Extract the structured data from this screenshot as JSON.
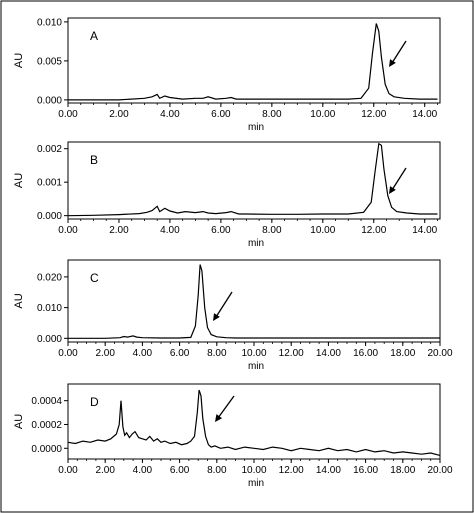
{
  "chart_data": [
    {
      "type": "line",
      "panel_label": "A",
      "ylabel": "AU",
      "xlabel": "min",
      "xlim": [
        0,
        14.6
      ],
      "ylim": [
        -0.0004,
        0.0105
      ],
      "x_ticks": [
        "0.00",
        "2.00",
        "4.00",
        "6.00",
        "8.00",
        "10.00",
        "12.00",
        "14.00"
      ],
      "y_ticks": [
        "0.000",
        "0.005",
        "0.010"
      ],
      "annotation": "arrow",
      "series": [
        {
          "x": [
            0,
            1,
            2,
            3.0,
            3.3,
            3.5,
            3.6,
            3.8,
            4.0,
            4.5,
            5.0,
            5.3,
            5.5,
            5.8,
            6.2,
            6.4,
            6.6,
            7,
            8,
            9,
            10,
            11,
            11.5,
            11.8,
            11.95,
            12.1,
            12.2,
            12.3,
            12.45,
            12.6,
            12.8,
            13.2,
            13.8,
            14.5
          ],
          "y": [
            0,
            0,
            0,
            0.0002,
            0.0004,
            0.0007,
            0.0002,
            0.0005,
            0.0003,
            0.0001,
            0.0002,
            0.0002,
            0.0004,
            0.0001,
            0.0002,
            0.0003,
            0.0001,
            0.0001,
            0.0001,
            0.0001,
            0.0001,
            0.0001,
            0.0002,
            0.0015,
            0.006,
            0.0098,
            0.0088,
            0.0055,
            0.002,
            0.0008,
            0.0004,
            0.0002,
            0.0001,
            0.0001
          ]
        }
      ]
    },
    {
      "type": "line",
      "panel_label": "B",
      "ylabel": "AU",
      "xlabel": "min",
      "xlim": [
        0,
        14.6
      ],
      "ylim": [
        -0.0001,
        0.0022
      ],
      "x_ticks": [
        "0.00",
        "2.00",
        "4.00",
        "6.00",
        "8.00",
        "10.00",
        "12.00",
        "14.00"
      ],
      "y_ticks": [
        "0.000",
        "0.001",
        "0.002"
      ],
      "annotation": "arrow",
      "series": [
        {
          "x": [
            0,
            1,
            2,
            2.8,
            3.1,
            3.3,
            3.5,
            3.6,
            3.8,
            4.0,
            4.3,
            4.6,
            5.0,
            5.3,
            5.5,
            5.8,
            6.2,
            6.4,
            6.7,
            7,
            8,
            9,
            10,
            11,
            11.6,
            11.9,
            12.05,
            12.2,
            12.3,
            12.4,
            12.55,
            12.7,
            12.9,
            13.3,
            13.8,
            14.5
          ],
          "y": [
            0,
            1e-05,
            3e-05,
            6e-05,
            0.0001,
            0.00015,
            0.00028,
            0.00012,
            0.00022,
            0.00014,
            8e-05,
            0.00012,
            9e-05,
            0.00012,
            8e-05,
            6e-05,
            9e-05,
            0.00012,
            5e-05,
            5e-05,
            4e-05,
            4e-05,
            5e-05,
            5e-05,
            0.0001,
            0.0004,
            0.0013,
            0.00215,
            0.0021,
            0.0014,
            0.0006,
            0.00025,
            0.00012,
            8e-05,
            5e-05,
            5e-05
          ]
        }
      ]
    },
    {
      "type": "line",
      "panel_label": "C",
      "ylabel": "AU",
      "xlabel": "min",
      "xlim": [
        0,
        20
      ],
      "ylim": [
        -0.0012,
        0.0255
      ],
      "x_ticks": [
        "0.00",
        "2.00",
        "4.00",
        "6.00",
        "8.00",
        "10.00",
        "12.00",
        "14.00",
        "16.00",
        "18.00",
        "20.00"
      ],
      "y_ticks": [
        "0.000",
        "0.010",
        "0.020"
      ],
      "annotation": "arrow",
      "series": [
        {
          "x": [
            0,
            1,
            2,
            2.8,
            3.0,
            3.2,
            3.5,
            3.7,
            4.0,
            5,
            6,
            6.6,
            6.85,
            7.0,
            7.1,
            7.2,
            7.35,
            7.5,
            7.7,
            8.0,
            8.5,
            9,
            10,
            12,
            14,
            16,
            18,
            20
          ],
          "y": [
            0,
            0,
            0,
            0.0002,
            0.0006,
            0.0004,
            0.0008,
            0.0004,
            0.0002,
            0.0001,
            0.0001,
            0.0003,
            0.004,
            0.014,
            0.024,
            0.022,
            0.01,
            0.0035,
            0.0012,
            0.0005,
            0.0002,
            0.0001,
            0.0001,
            0.0001,
            0.0001,
            0.0001,
            0.0001,
            0.0001
          ]
        }
      ]
    },
    {
      "type": "line",
      "panel_label": "D",
      "ylabel": "AU",
      "xlabel": "min",
      "xlim": [
        0,
        20
      ],
      "ylim": [
        -9e-05,
        0.00054
      ],
      "x_ticks": [
        "0.00",
        "2.00",
        "4.00",
        "6.00",
        "8.00",
        "10.00",
        "12.00",
        "14.00",
        "16.00",
        "18.00",
        "20.00"
      ],
      "y_ticks": [
        "0.0000",
        "0.0002",
        "0.0004"
      ],
      "annotation": "arrow",
      "series": [
        {
          "x": [
            0,
            0.4,
            0.8,
            1.2,
            1.6,
            2.0,
            2.3,
            2.6,
            2.75,
            2.85,
            2.95,
            3.05,
            3.15,
            3.3,
            3.45,
            3.6,
            3.8,
            4.0,
            4.2,
            4.4,
            4.6,
            4.8,
            5.0,
            5.2,
            5.5,
            5.8,
            6.1,
            6.4,
            6.6,
            6.8,
            6.95,
            7.05,
            7.15,
            7.25,
            7.4,
            7.55,
            7.7,
            7.9,
            8.2,
            8.6,
            9.0,
            9.5,
            10,
            10.5,
            11,
            11.5,
            12,
            12.5,
            13,
            13.5,
            14,
            14.5,
            15,
            15.5,
            16,
            16.5,
            17,
            17.5,
            18,
            18.5,
            19,
            19.5,
            20
          ],
          "y": [
            5e-05,
            4e-05,
            6e-05,
            5e-05,
            7e-05,
            6e-05,
            8e-05,
            0.00012,
            0.0002,
            0.0004,
            0.00018,
            0.00011,
            0.00013,
            9e-05,
            0.00012,
            0.00014,
            9e-05,
            8e-05,
            7e-05,
            0.0001,
            6e-05,
            8e-05,
            5e-05,
            6e-05,
            4e-05,
            5e-05,
            3e-05,
            4e-05,
            6e-05,
            0.0001,
            0.0003,
            0.00049,
            0.00044,
            0.00025,
            0.0001,
            3e-05,
            1e-05,
            2e-05,
            0,
            1e-05,
            -1e-05,
            1e-05,
            0,
            -1e-05,
            1e-05,
            0,
            -2e-05,
            0,
            -1e-05,
            -2e-05,
            0,
            -2e-05,
            -1e-05,
            -3e-05,
            -1e-05,
            -3e-05,
            -2e-05,
            -4e-05,
            -3e-05,
            -4e-05,
            -5e-05,
            -4e-05,
            -6e-05
          ]
        }
      ]
    }
  ]
}
